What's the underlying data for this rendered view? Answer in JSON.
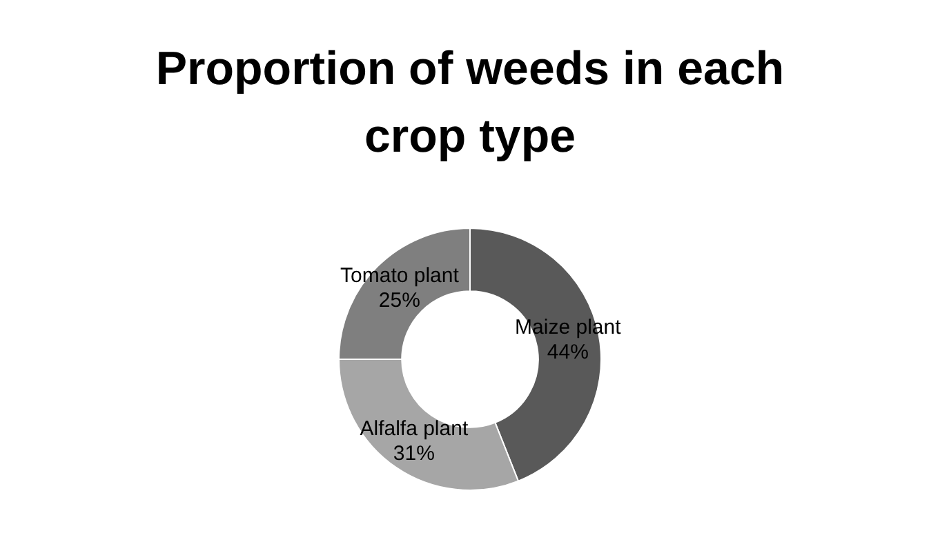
{
  "chart_data": {
    "type": "donut",
    "title": "Proportion of weeds in each crop type",
    "categories": [
      "Maize plant",
      "Alfalfa plant",
      "Tomato plant"
    ],
    "values": [
      44,
      31,
      25
    ],
    "colors": [
      "#595959",
      "#a6a6a6",
      "#7f7f7f"
    ],
    "value_labels": [
      "44%",
      "31%",
      "25%"
    ],
    "legend": false
  }
}
